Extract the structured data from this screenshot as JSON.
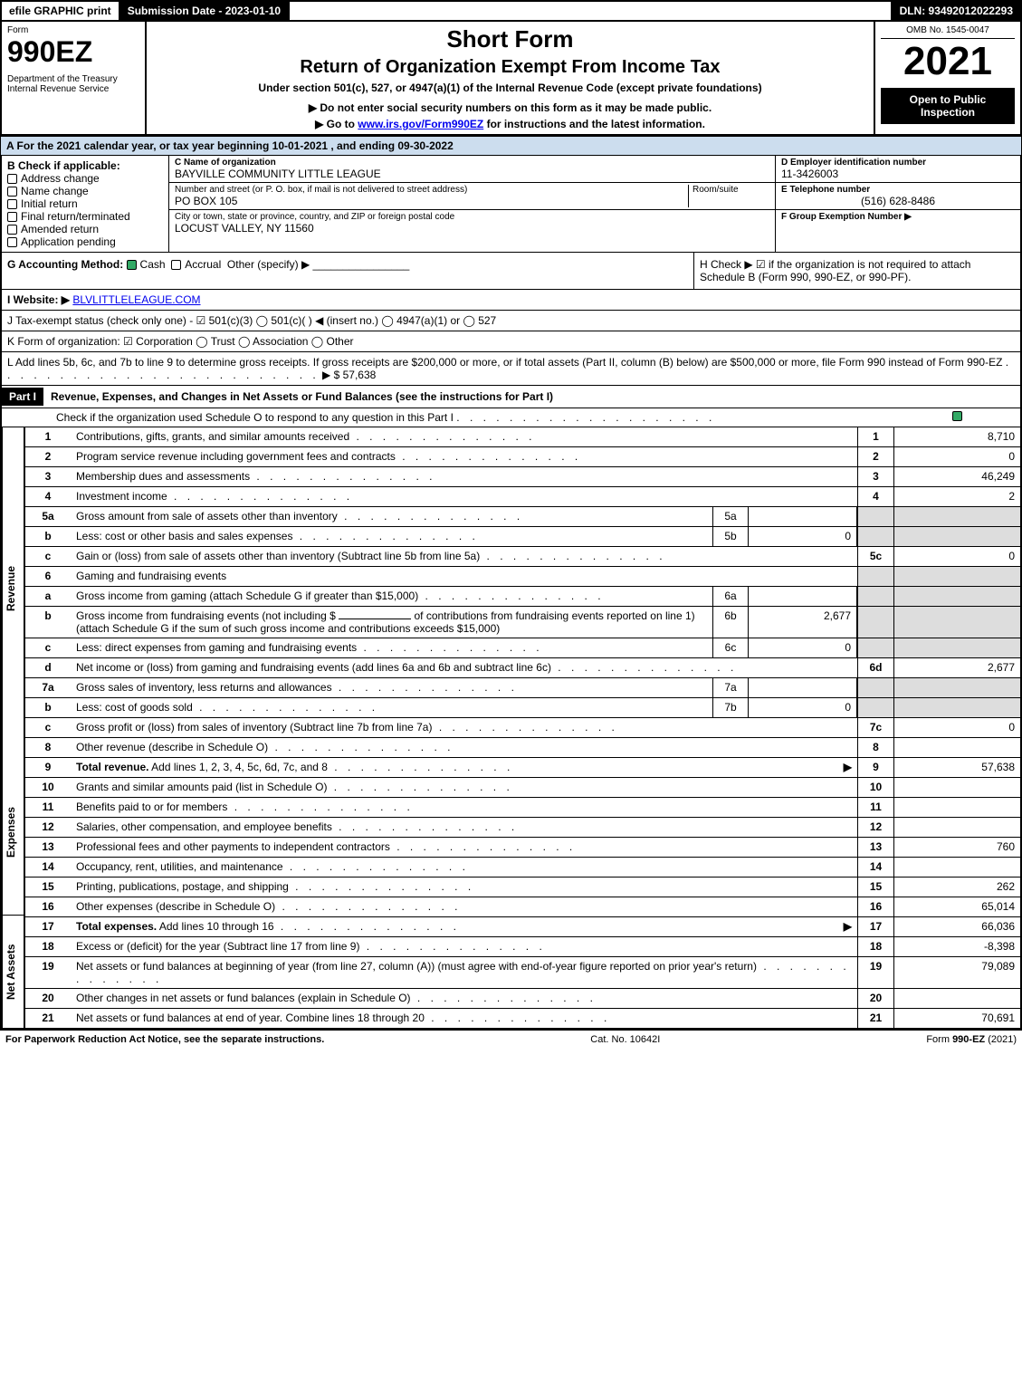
{
  "topbar": {
    "efile": "efile GRAPHIC print",
    "submission": "Submission Date - 2023-01-10",
    "dln": "DLN: 93492012022293"
  },
  "header": {
    "form_label": "Form",
    "form_no": "990EZ",
    "dept": "Department of the Treasury\nInternal Revenue Service",
    "short_form": "Short Form",
    "title": "Return of Organization Exempt From Income Tax",
    "subtitle": "Under section 501(c), 527, or 4947(a)(1) of the Internal Revenue Code (except private foundations)",
    "note1": "▶ Do not enter social security numbers on this form as it may be made public.",
    "note2": "▶ Go to www.irs.gov/Form990EZ for instructions and the latest information.",
    "omb": "OMB No. 1545-0047",
    "year": "2021",
    "inspection": "Open to Public Inspection"
  },
  "section_a": "A  For the 2021 calendar year, or tax year beginning 10-01-2021 , and ending 09-30-2022",
  "box_b": {
    "label": "B  Check if applicable:",
    "items": [
      "Address change",
      "Name change",
      "Initial return",
      "Final return/terminated",
      "Amended return",
      "Application pending"
    ]
  },
  "box_c": {
    "name_label": "C Name of organization",
    "name": "BAYVILLE COMMUNITY LITTLE LEAGUE",
    "street_label": "Number and street (or P. O. box, if mail is not delivered to street address)",
    "street": "PO BOX 105",
    "room_label": "Room/suite",
    "city_label": "City or town, state or province, country, and ZIP or foreign postal code",
    "city": "LOCUST VALLEY, NY  11560"
  },
  "box_d": {
    "ein_label": "D Employer identification number",
    "ein": "11-3426003",
    "phone_label": "E Telephone number",
    "phone": "(516) 628-8486",
    "group_label": "F Group Exemption Number  ▶"
  },
  "g": {
    "label": "G Accounting Method:",
    "cash": "Cash",
    "accrual": "Accrual",
    "other": "Other (specify) ▶"
  },
  "h": "H  Check ▶ ☑ if the organization is not required to attach Schedule B (Form 990, 990-EZ, or 990-PF).",
  "i": {
    "label": "I Website: ▶",
    "value": "BLVLITTLELEAGUE.COM"
  },
  "j": "J Tax-exempt status (check only one) - ☑ 501(c)(3)  ◯ 501(c)(  ) ◀ (insert no.)  ◯ 4947(a)(1) or  ◯ 527",
  "k": "K Form of organization:  ☑ Corporation  ◯ Trust  ◯ Association  ◯ Other",
  "l": {
    "text": "L Add lines 5b, 6c, and 7b to line 9 to determine gross receipts. If gross receipts are $200,000 or more, or if total assets (Part II, column (B) below) are $500,000 or more, file Form 990 instead of Form 990-EZ",
    "amount": "▶ $ 57,638"
  },
  "part1": {
    "label": "Part I",
    "title": "Revenue, Expenses, and Changes in Net Assets or Fund Balances (see the instructions for Part I)",
    "check": "Check if the organization used Schedule O to respond to any question in this Part I"
  },
  "sidetabs": {
    "revenue": "Revenue",
    "expenses": "Expenses",
    "netassets": "Net Assets"
  },
  "lines": {
    "1": {
      "n": "1",
      "d": "Contributions, gifts, grants, and similar amounts received",
      "r": "1",
      "v": "8,710"
    },
    "2": {
      "n": "2",
      "d": "Program service revenue including government fees and contracts",
      "r": "2",
      "v": "0"
    },
    "3": {
      "n": "3",
      "d": "Membership dues and assessments",
      "r": "3",
      "v": "46,249"
    },
    "4": {
      "n": "4",
      "d": "Investment income",
      "r": "4",
      "v": "2"
    },
    "5a": {
      "n": "5a",
      "d": "Gross amount from sale of assets other than inventory",
      "sn": "5a",
      "sv": ""
    },
    "5b": {
      "n": "b",
      "d": "Less: cost or other basis and sales expenses",
      "sn": "5b",
      "sv": "0"
    },
    "5c": {
      "n": "c",
      "d": "Gain or (loss) from sale of assets other than inventory (Subtract line 5b from line 5a)",
      "r": "5c",
      "v": "0"
    },
    "6": {
      "n": "6",
      "d": "Gaming and fundraising events"
    },
    "6a": {
      "n": "a",
      "d": "Gross income from gaming (attach Schedule G if greater than $15,000)",
      "sn": "6a",
      "sv": ""
    },
    "6b": {
      "n": "b",
      "d1": "Gross income from fundraising events (not including $",
      "d2": "of contributions from fundraising events reported on line 1) (attach Schedule G if the sum of such gross income and contributions exceeds $15,000)",
      "sn": "6b",
      "sv": "2,677"
    },
    "6c": {
      "n": "c",
      "d": "Less: direct expenses from gaming and fundraising events",
      "sn": "6c",
      "sv": "0"
    },
    "6d": {
      "n": "d",
      "d": "Net income or (loss) from gaming and fundraising events (add lines 6a and 6b and subtract line 6c)",
      "r": "6d",
      "v": "2,677"
    },
    "7a": {
      "n": "7a",
      "d": "Gross sales of inventory, less returns and allowances",
      "sn": "7a",
      "sv": ""
    },
    "7b": {
      "n": "b",
      "d": "Less: cost of goods sold",
      "sn": "7b",
      "sv": "0"
    },
    "7c": {
      "n": "c",
      "d": "Gross profit or (loss) from sales of inventory (Subtract line 7b from line 7a)",
      "r": "7c",
      "v": "0"
    },
    "8": {
      "n": "8",
      "d": "Other revenue (describe in Schedule O)",
      "r": "8",
      "v": ""
    },
    "9": {
      "n": "9",
      "d": "Total revenue. Add lines 1, 2, 3, 4, 5c, 6d, 7c, and 8",
      "r": "9",
      "v": "57,638"
    },
    "10": {
      "n": "10",
      "d": "Grants and similar amounts paid (list in Schedule O)",
      "r": "10",
      "v": ""
    },
    "11": {
      "n": "11",
      "d": "Benefits paid to or for members",
      "r": "11",
      "v": ""
    },
    "12": {
      "n": "12",
      "d": "Salaries, other compensation, and employee benefits",
      "r": "12",
      "v": ""
    },
    "13": {
      "n": "13",
      "d": "Professional fees and other payments to independent contractors",
      "r": "13",
      "v": "760"
    },
    "14": {
      "n": "14",
      "d": "Occupancy, rent, utilities, and maintenance",
      "r": "14",
      "v": ""
    },
    "15": {
      "n": "15",
      "d": "Printing, publications, postage, and shipping",
      "r": "15",
      "v": "262"
    },
    "16": {
      "n": "16",
      "d": "Other expenses (describe in Schedule O)",
      "r": "16",
      "v": "65,014"
    },
    "17": {
      "n": "17",
      "d": "Total expenses. Add lines 10 through 16",
      "r": "17",
      "v": "66,036"
    },
    "18": {
      "n": "18",
      "d": "Excess or (deficit) for the year (Subtract line 17 from line 9)",
      "r": "18",
      "v": "-8,398"
    },
    "19": {
      "n": "19",
      "d": "Net assets or fund balances at beginning of year (from line 27, column (A)) (must agree with end-of-year figure reported on prior year's return)",
      "r": "19",
      "v": "79,089"
    },
    "20": {
      "n": "20",
      "d": "Other changes in net assets or fund balances (explain in Schedule O)",
      "r": "20",
      "v": ""
    },
    "21": {
      "n": "21",
      "d": "Net assets or fund balances at end of year. Combine lines 18 through 20",
      "r": "21",
      "v": "70,691"
    }
  },
  "footer": {
    "left": "For Paperwork Reduction Act Notice, see the separate instructions.",
    "mid": "Cat. No. 10642I",
    "right": "Form 990-EZ (2021)"
  }
}
